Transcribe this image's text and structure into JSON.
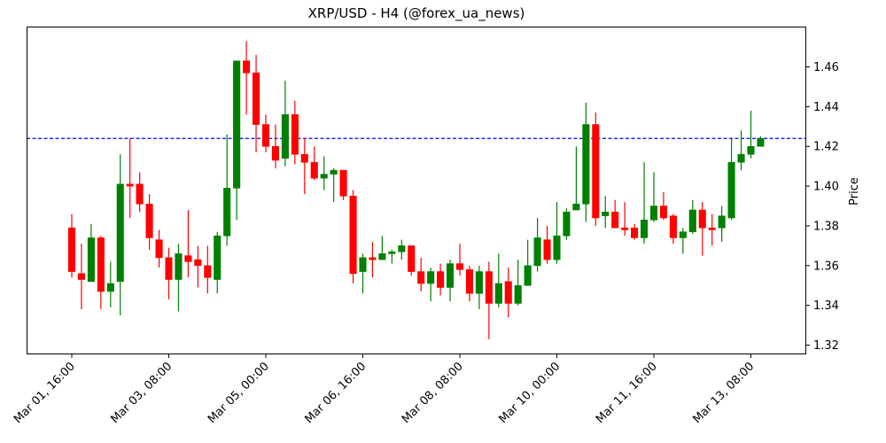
{
  "chart_data": {
    "type": "candlestick",
    "title": "XRP/USD - H4 (@forex_ua_news)",
    "xlabel": "",
    "ylabel": "Price",
    "ylim": [
      1.315,
      1.48
    ],
    "yticks": [
      1.32,
      1.34,
      1.36,
      1.38,
      1.4,
      1.42,
      1.44,
      1.46
    ],
    "ytick_labels": [
      "1.32",
      "1.34",
      "1.36",
      "1.38",
      "1.40",
      "1.42",
      "1.44",
      "1.46"
    ],
    "xtick_labels": [
      "Mar 01, 16:00",
      "Mar 03, 08:00",
      "Mar 05, 00:00",
      "Mar 06, 16:00",
      "Mar 08, 08:00",
      "Mar 10, 00:00",
      "Mar 11, 16:00",
      "Mar 13, 08:00"
    ],
    "xtick_candle_index": [
      0,
      10,
      20,
      30,
      40,
      50,
      60,
      70
    ],
    "grid": false,
    "legend": null,
    "hline": {
      "value": 1.424,
      "color": "#0000ff",
      "style": "dashed"
    },
    "colors": {
      "up": "#008000",
      "down": "#ff0000"
    },
    "candles": [
      {
        "o": 1.379,
        "h": 1.386,
        "l": 1.354,
        "c": 1.357
      },
      {
        "o": 1.356,
        "h": 1.371,
        "l": 1.338,
        "c": 1.353
      },
      {
        "o": 1.352,
        "h": 1.381,
        "l": 1.352,
        "c": 1.374
      },
      {
        "o": 1.374,
        "h": 1.375,
        "l": 1.338,
        "c": 1.347
      },
      {
        "o": 1.347,
        "h": 1.362,
        "l": 1.339,
        "c": 1.351
      },
      {
        "o": 1.352,
        "h": 1.416,
        "l": 1.335,
        "c": 1.401
      },
      {
        "o": 1.401,
        "h": 1.424,
        "l": 1.384,
        "c": 1.4
      },
      {
        "o": 1.401,
        "h": 1.407,
        "l": 1.387,
        "c": 1.391
      },
      {
        "o": 1.391,
        "h": 1.396,
        "l": 1.368,
        "c": 1.374
      },
      {
        "o": 1.373,
        "h": 1.378,
        "l": 1.359,
        "c": 1.364
      },
      {
        "o": 1.364,
        "h": 1.369,
        "l": 1.343,
        "c": 1.353
      },
      {
        "o": 1.353,
        "h": 1.371,
        "l": 1.337,
        "c": 1.366
      },
      {
        "o": 1.365,
        "h": 1.388,
        "l": 1.354,
        "c": 1.362
      },
      {
        "o": 1.363,
        "h": 1.37,
        "l": 1.349,
        "c": 1.36
      },
      {
        "o": 1.36,
        "h": 1.37,
        "l": 1.346,
        "c": 1.354
      },
      {
        "o": 1.353,
        "h": 1.377,
        "l": 1.346,
        "c": 1.375
      },
      {
        "o": 1.375,
        "h": 1.426,
        "l": 1.37,
        "c": 1.399
      },
      {
        "o": 1.399,
        "h": 1.463,
        "l": 1.383,
        "c": 1.463
      },
      {
        "o": 1.463,
        "h": 1.473,
        "l": 1.436,
        "c": 1.457
      },
      {
        "o": 1.457,
        "h": 1.466,
        "l": 1.417,
        "c": 1.431
      },
      {
        "o": 1.431,
        "h": 1.436,
        "l": 1.417,
        "c": 1.42
      },
      {
        "o": 1.42,
        "h": 1.431,
        "l": 1.409,
        "c": 1.413
      },
      {
        "o": 1.414,
        "h": 1.453,
        "l": 1.41,
        "c": 1.436
      },
      {
        "o": 1.436,
        "h": 1.443,
        "l": 1.411,
        "c": 1.416
      },
      {
        "o": 1.416,
        "h": 1.424,
        "l": 1.396,
        "c": 1.412
      },
      {
        "o": 1.412,
        "h": 1.42,
        "l": 1.403,
        "c": 1.404
      },
      {
        "o": 1.404,
        "h": 1.415,
        "l": 1.398,
        "c": 1.406
      },
      {
        "o": 1.406,
        "h": 1.409,
        "l": 1.392,
        "c": 1.408
      },
      {
        "o": 1.408,
        "h": 1.408,
        "l": 1.393,
        "c": 1.395
      },
      {
        "o": 1.395,
        "h": 1.398,
        "l": 1.351,
        "c": 1.356
      },
      {
        "o": 1.357,
        "h": 1.366,
        "l": 1.346,
        "c": 1.364
      },
      {
        "o": 1.364,
        "h": 1.372,
        "l": 1.354,
        "c": 1.363
      },
      {
        "o": 1.363,
        "h": 1.375,
        "l": 1.363,
        "c": 1.366
      },
      {
        "o": 1.366,
        "h": 1.368,
        "l": 1.361,
        "c": 1.367
      },
      {
        "o": 1.367,
        "h": 1.373,
        "l": 1.363,
        "c": 1.37
      },
      {
        "o": 1.37,
        "h": 1.37,
        "l": 1.355,
        "c": 1.357
      },
      {
        "o": 1.357,
        "h": 1.364,
        "l": 1.347,
        "c": 1.351
      },
      {
        "o": 1.351,
        "h": 1.359,
        "l": 1.342,
        "c": 1.357
      },
      {
        "o": 1.357,
        "h": 1.361,
        "l": 1.345,
        "c": 1.349
      },
      {
        "o": 1.349,
        "h": 1.363,
        "l": 1.342,
        "c": 1.361
      },
      {
        "o": 1.361,
        "h": 1.371,
        "l": 1.355,
        "c": 1.358
      },
      {
        "o": 1.358,
        "h": 1.36,
        "l": 1.342,
        "c": 1.346
      },
      {
        "o": 1.346,
        "h": 1.36,
        "l": 1.338,
        "c": 1.357
      },
      {
        "o": 1.357,
        "h": 1.362,
        "l": 1.323,
        "c": 1.341
      },
      {
        "o": 1.341,
        "h": 1.366,
        "l": 1.339,
        "c": 1.351
      },
      {
        "o": 1.352,
        "h": 1.359,
        "l": 1.334,
        "c": 1.341
      },
      {
        "o": 1.341,
        "h": 1.363,
        "l": 1.34,
        "c": 1.35
      },
      {
        "o": 1.35,
        "h": 1.373,
        "l": 1.35,
        "c": 1.36
      },
      {
        "o": 1.36,
        "h": 1.384,
        "l": 1.357,
        "c": 1.374
      },
      {
        "o": 1.373,
        "h": 1.38,
        "l": 1.361,
        "c": 1.363
      },
      {
        "o": 1.363,
        "h": 1.392,
        "l": 1.361,
        "c": 1.375
      },
      {
        "o": 1.375,
        "h": 1.389,
        "l": 1.373,
        "c": 1.387
      },
      {
        "o": 1.388,
        "h": 1.42,
        "l": 1.388,
        "c": 1.391
      },
      {
        "o": 1.391,
        "h": 1.442,
        "l": 1.382,
        "c": 1.431
      },
      {
        "o": 1.431,
        "h": 1.437,
        "l": 1.38,
        "c": 1.384
      },
      {
        "o": 1.385,
        "h": 1.395,
        "l": 1.379,
        "c": 1.387
      },
      {
        "o": 1.387,
        "h": 1.393,
        "l": 1.379,
        "c": 1.379
      },
      {
        "o": 1.379,
        "h": 1.392,
        "l": 1.375,
        "c": 1.378
      },
      {
        "o": 1.379,
        "h": 1.381,
        "l": 1.373,
        "c": 1.374
      },
      {
        "o": 1.374,
        "h": 1.412,
        "l": 1.371,
        "c": 1.383
      },
      {
        "o": 1.383,
        "h": 1.407,
        "l": 1.382,
        "c": 1.39
      },
      {
        "o": 1.39,
        "h": 1.397,
        "l": 1.383,
        "c": 1.384
      },
      {
        "o": 1.385,
        "h": 1.386,
        "l": 1.371,
        "c": 1.374
      },
      {
        "o": 1.374,
        "h": 1.379,
        "l": 1.366,
        "c": 1.377
      },
      {
        "o": 1.377,
        "h": 1.393,
        "l": 1.376,
        "c": 1.388
      },
      {
        "o": 1.388,
        "h": 1.392,
        "l": 1.365,
        "c": 1.379
      },
      {
        "o": 1.379,
        "h": 1.386,
        "l": 1.37,
        "c": 1.378
      },
      {
        "o": 1.379,
        "h": 1.39,
        "l": 1.372,
        "c": 1.385
      },
      {
        "o": 1.384,
        "h": 1.424,
        "l": 1.383,
        "c": 1.412
      },
      {
        "o": 1.412,
        "h": 1.428,
        "l": 1.408,
        "c": 1.416
      },
      {
        "o": 1.416,
        "h": 1.438,
        "l": 1.414,
        "c": 1.42
      },
      {
        "o": 1.42,
        "h": 1.425,
        "l": 1.42,
        "c": 1.424
      }
    ]
  }
}
